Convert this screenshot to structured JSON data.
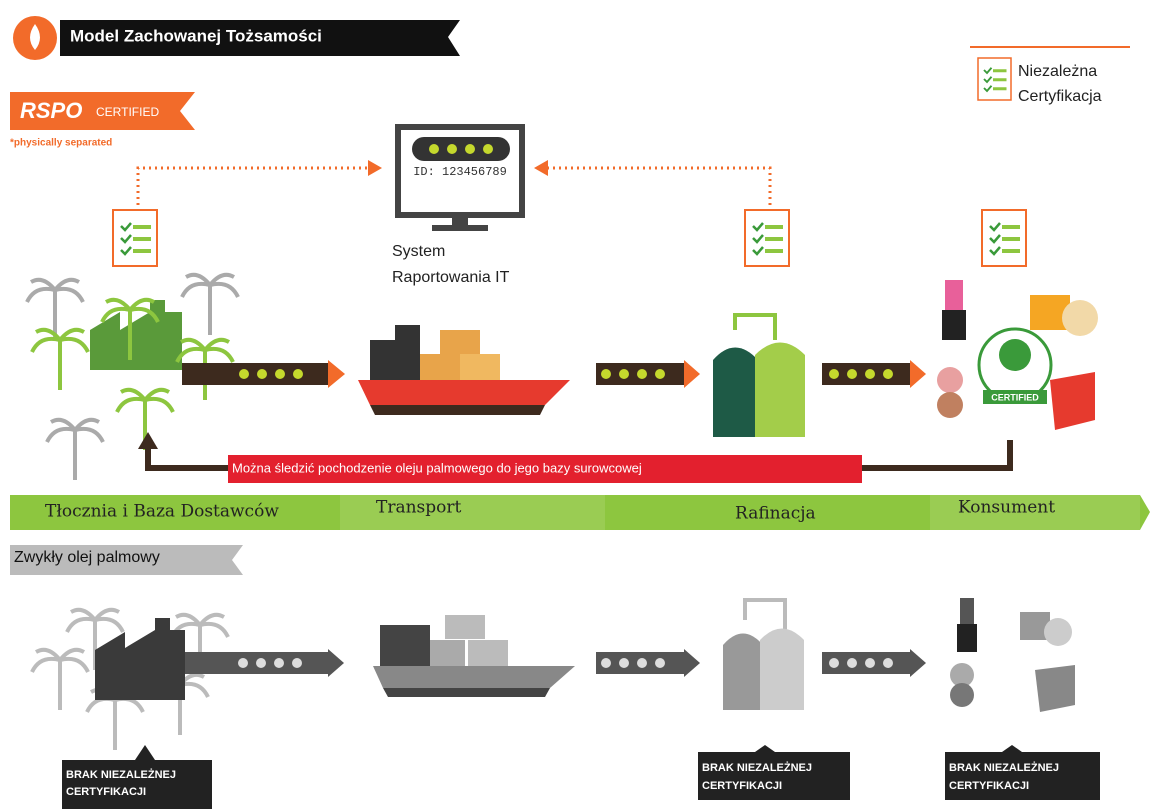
{
  "header": {
    "title": "Model Zachowanej Tożsamości"
  },
  "badge": {
    "brand": "RSPO",
    "label": "CERTIFIED",
    "note": "*physically separated"
  },
  "legend": {
    "lines": [
      "Niezależna",
      "Certyfikacja"
    ]
  },
  "it_system": {
    "screen_id": "ID: 123456789",
    "lines": [
      "System",
      "Raportowania IT"
    ]
  },
  "trace_banner": "Można śledzić pochodzenie oleju palmowego do jego bazy surowcowej",
  "seal": {
    "label": "CERTIFIED"
  },
  "stages": [
    "Tłocznia i Baza Dostawców",
    "Transport",
    "Rafinacja",
    "Konsument"
  ],
  "conventional": {
    "title": "Zwykły olej palmowy",
    "warnings": [
      [
        "BRAK NIEZALEŻNEJ",
        "CERTYFIKACJI"
      ],
      [
        "BRAK NIEZALEŻNEJ",
        "CERTYFIKACJI"
      ],
      [
        "BRAK NIEZALEŻNEJ",
        "CERTYFIKACJI"
      ]
    ]
  }
}
